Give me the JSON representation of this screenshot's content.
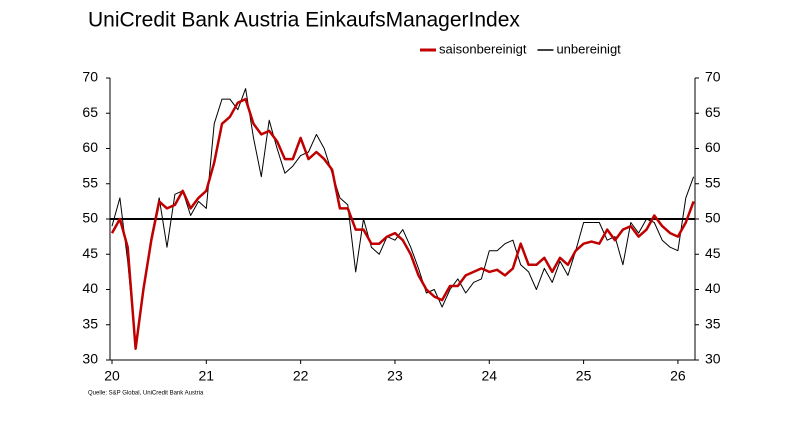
{
  "chart_data": {
    "type": "line",
    "title": "UniCredit Bank Austria EinkaufsManagerIndex",
    "source": "Quelle: S&P Global, UniCredit Bank Austria",
    "categories": [
      "20",
      null,
      null,
      null,
      null,
      null,
      null,
      null,
      null,
      null,
      null,
      null,
      "21",
      null,
      null,
      null,
      null,
      null,
      null,
      null,
      null,
      null,
      null,
      null,
      "22",
      null,
      null,
      null,
      null,
      null,
      null,
      null,
      null,
      null,
      null,
      null,
      "23",
      null,
      null,
      null,
      null,
      null,
      null,
      null,
      null,
      null,
      null,
      null,
      "24",
      null,
      null,
      null,
      null,
      null,
      null,
      null,
      null,
      null,
      null,
      null,
      "25",
      null,
      null,
      null,
      null,
      null,
      null,
      null,
      null,
      null,
      null,
      null,
      "26",
      null,
      null
    ],
    "series": [
      {
        "name": "saisonbereinigt",
        "color": "#c00000",
        "width": 2.5,
        "values": [
          48,
          50,
          46,
          31.6,
          40,
          47,
          52.5,
          51.5,
          52,
          54,
          51.5,
          53,
          54,
          58,
          63.5,
          64.5,
          66.5,
          67,
          63.5,
          62,
          62.5,
          61,
          58.5,
          58.5,
          61.5,
          58.5,
          59.5,
          58.5,
          57,
          51.5,
          51.5,
          48.5,
          48.5,
          46.5,
          46.5,
          47.5,
          48,
          47,
          45,
          42,
          40,
          39,
          38.5,
          40.5,
          40.5,
          42,
          42.5,
          43,
          42.5,
          42.8,
          42,
          43,
          46.5,
          43.5,
          43.5,
          44.5,
          42.5,
          44.5,
          43.5,
          45.5,
          46.5,
          46.8,
          46.5,
          48.5,
          47,
          48.5,
          49,
          47.5,
          48.5,
          50.5,
          49,
          48,
          47.5,
          49.5,
          52.5
        ]
      },
      {
        "name": "unbereinigt",
        "color": "#000000",
        "width": 1,
        "values": [
          49,
          53,
          44,
          32,
          40,
          47.5,
          53,
          46,
          53.5,
          54,
          50.5,
          52.5,
          51.5,
          63.5,
          67,
          67,
          65.5,
          68.5,
          61.5,
          56,
          64,
          60,
          56.5,
          57.5,
          59,
          59.5,
          62,
          60,
          56.5,
          53,
          52,
          42.5,
          50,
          46,
          45,
          47.5,
          47,
          48.5,
          46,
          43,
          39.5,
          40,
          37.5,
          40,
          41.5,
          39.5,
          41,
          41.5,
          45.5,
          45.5,
          46.5,
          47,
          43.5,
          42.5,
          40,
          43,
          41,
          44,
          42,
          45.5,
          49.5,
          49.5,
          49.5,
          47,
          47.5,
          43.5,
          49.5,
          48,
          50,
          49.5,
          47,
          46,
          45.5,
          53,
          56
        ]
      }
    ],
    "hline": 50,
    "ylim": [
      30,
      70
    ],
    "yticks": [
      30,
      35,
      40,
      45,
      50,
      55,
      60,
      65,
      70
    ]
  }
}
